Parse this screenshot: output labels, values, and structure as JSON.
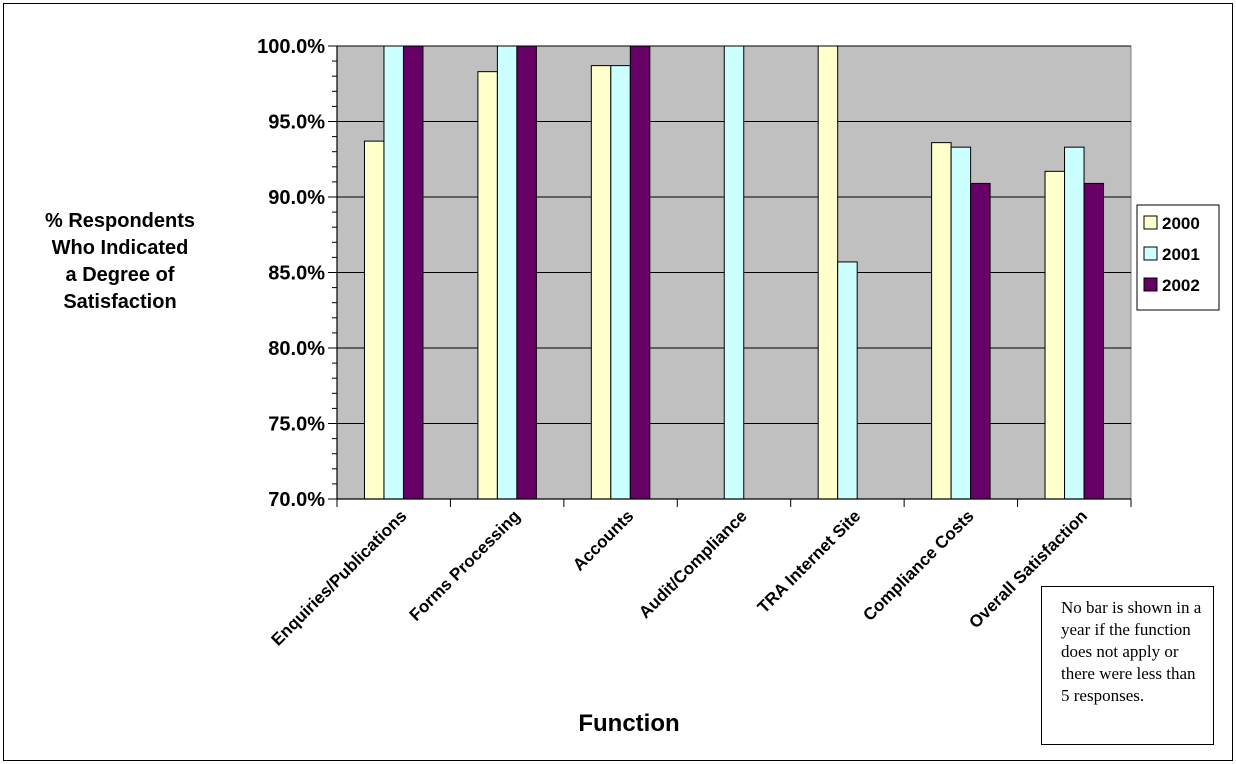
{
  "chart_data": {
    "type": "bar",
    "xlabel": "Function",
    "ylabel_lines": [
      "% Respondents",
      "Who Indicated",
      "a Degree of",
      "Satisfaction"
    ],
    "ylim": [
      0.7,
      1.0
    ],
    "y_ticks": [
      0.7,
      0.75,
      0.8,
      0.85,
      0.9,
      0.95,
      1.0
    ],
    "y_tick_labels": [
      "70.0%",
      "75.0%",
      "80.0%",
      "85.0%",
      "90.0%",
      "95.0%",
      "100.0%"
    ],
    "grid": true,
    "legend_position": "right",
    "categories": [
      "Enquiries/Publications",
      "Forms Processing",
      "Accounts",
      "Audit/Compliance",
      "TRA Internet Site",
      "Compliance Costs",
      "Overall Satisfaction"
    ],
    "series": [
      {
        "name": "2000",
        "color": "#ffffcc",
        "values": [
          0.937,
          0.983,
          0.987,
          null,
          1.0,
          0.936,
          0.917
        ]
      },
      {
        "name": "2001",
        "color": "#ccffff",
        "values": [
          1.0,
          1.0,
          0.987,
          1.0,
          0.857,
          0.933,
          0.933
        ]
      },
      {
        "name": "2002",
        "color": "#660066",
        "values": [
          1.0,
          1.0,
          1.0,
          null,
          null,
          0.909,
          0.909
        ]
      }
    ],
    "plot_background": "#c0c0c0",
    "annotation": "No bar is shown in a year if the function does not apply or there were less than 5 responses."
  }
}
